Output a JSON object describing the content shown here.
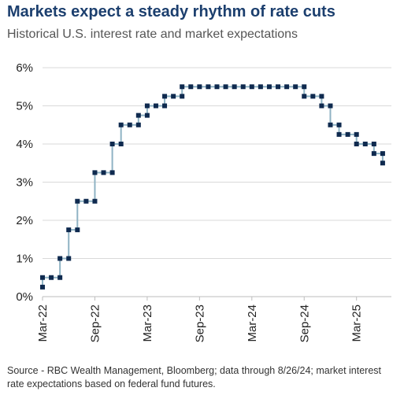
{
  "title": "Markets expect a steady rhythm of rate cuts",
  "subtitle": "Historical U.S. interest rate and market expectations",
  "source": "Source - RBC Wealth Management, Bloomberg; data through 8/26/24; market interest rate expectations based on federal fund futures.",
  "colors": {
    "title": "#1c3f6e",
    "marker": "#0f2a4f",
    "step_line": "#8fb3c4",
    "grid": "#d9d9d9"
  },
  "chart_data": {
    "type": "line",
    "style": "step with square markers",
    "xlabel": "",
    "ylabel": "",
    "ylim": [
      0,
      6
    ],
    "grid": true,
    "legend": "none",
    "yticks": [
      {
        "value": 0,
        "label": "0%"
      },
      {
        "value": 1,
        "label": "1%"
      },
      {
        "value": 2,
        "label": "2%"
      },
      {
        "value": 3,
        "label": "3%"
      },
      {
        "value": 4,
        "label": "4%"
      },
      {
        "value": 5,
        "label": "5%"
      },
      {
        "value": 6,
        "label": "6%"
      }
    ],
    "xticks": [
      {
        "date": "2022-03",
        "label": "Mar-22"
      },
      {
        "date": "2022-09",
        "label": "Sep-22"
      },
      {
        "date": "2023-03",
        "label": "Mar-23"
      },
      {
        "date": "2023-09",
        "label": "Sep-23"
      },
      {
        "date": "2024-03",
        "label": "Mar-24"
      },
      {
        "date": "2024-09",
        "label": "Sep-24"
      },
      {
        "date": "2025-03",
        "label": "Mar-25"
      }
    ],
    "xlim": [
      "2022-03",
      "2025-07"
    ],
    "series": [
      {
        "points": [
          [
            "2022-03",
            0.25
          ],
          [
            "2022-03",
            0.5
          ],
          [
            "2022-04",
            0.5
          ],
          [
            "2022-05",
            0.5
          ],
          [
            "2022-05",
            1.0
          ],
          [
            "2022-06",
            1.0
          ],
          [
            "2022-06",
            1.75
          ],
          [
            "2022-07",
            1.75
          ],
          [
            "2022-07",
            2.5
          ],
          [
            "2022-08",
            2.5
          ],
          [
            "2022-09",
            2.5
          ],
          [
            "2022-09",
            3.25
          ],
          [
            "2022-10",
            3.25
          ],
          [
            "2022-11",
            3.25
          ],
          [
            "2022-11",
            4.0
          ],
          [
            "2022-12",
            4.0
          ],
          [
            "2022-12",
            4.5
          ],
          [
            "2023-01",
            4.5
          ],
          [
            "2023-02",
            4.5
          ],
          [
            "2023-02",
            4.75
          ],
          [
            "2023-03",
            4.75
          ],
          [
            "2023-03",
            5.0
          ],
          [
            "2023-04",
            5.0
          ],
          [
            "2023-05",
            5.0
          ],
          [
            "2023-05",
            5.25
          ],
          [
            "2023-06",
            5.25
          ],
          [
            "2023-07",
            5.25
          ],
          [
            "2023-07",
            5.5
          ],
          [
            "2023-08",
            5.5
          ],
          [
            "2023-09",
            5.5
          ],
          [
            "2023-10",
            5.5
          ],
          [
            "2023-11",
            5.5
          ],
          [
            "2023-12",
            5.5
          ],
          [
            "2024-01",
            5.5
          ],
          [
            "2024-02",
            5.5
          ],
          [
            "2024-03",
            5.5
          ],
          [
            "2024-04",
            5.5
          ],
          [
            "2024-05",
            5.5
          ],
          [
            "2024-06",
            5.5
          ],
          [
            "2024-07",
            5.5
          ],
          [
            "2024-08",
            5.5
          ],
          [
            "2024-09",
            5.5
          ],
          [
            "2024-09",
            5.25
          ],
          [
            "2024-10",
            5.25
          ],
          [
            "2024-11",
            5.25
          ],
          [
            "2024-11",
            5.0
          ],
          [
            "2024-12",
            5.0
          ],
          [
            "2024-12",
            4.5
          ],
          [
            "2025-01",
            4.5
          ],
          [
            "2025-01",
            4.25
          ],
          [
            "2025-02",
            4.25
          ],
          [
            "2025-03",
            4.25
          ],
          [
            "2025-03",
            4.0
          ],
          [
            "2025-04",
            4.0
          ],
          [
            "2025-05",
            4.0
          ],
          [
            "2025-05",
            3.75
          ],
          [
            "2025-06",
            3.75
          ],
          [
            "2025-06",
            3.5
          ]
        ]
      }
    ]
  }
}
